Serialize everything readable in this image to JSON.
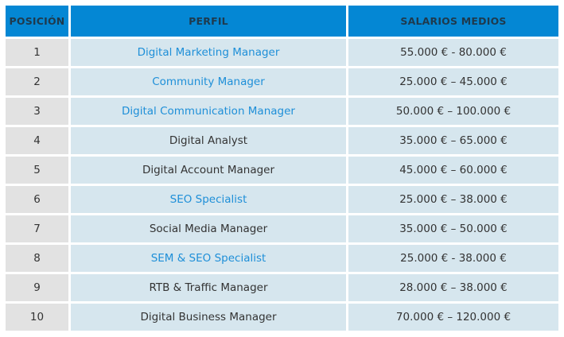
{
  "headers": {
    "position": "POSICIÓN",
    "profile": "PERFIL",
    "salary": "SALARIOS MEDIOS"
  },
  "rows": [
    {
      "pos": "1",
      "profile": "Digital Marketing Manager",
      "link": true,
      "salary": "55.000 € - 80.000 €"
    },
    {
      "pos": "2",
      "profile": "Community Manager",
      "link": true,
      "salary": "25.000 € – 45.000 €"
    },
    {
      "pos": "3",
      "profile": "Digital Communication Manager",
      "link": true,
      "salary": "50.000 € – 100.000 €"
    },
    {
      "pos": "4",
      "profile": "Digital Analyst",
      "link": false,
      "salary": "35.000 € – 65.000 €"
    },
    {
      "pos": "5",
      "profile": "Digital Account Manager",
      "link": false,
      "salary": "45.000 € – 60.000 €"
    },
    {
      "pos": "6",
      "profile": "SEO Specialist",
      "link": true,
      "salary": "25.000 € – 38.000 €"
    },
    {
      "pos": "7",
      "profile": "Social Media Manager",
      "link": false,
      "salary": "35.000 € – 50.000 €"
    },
    {
      "pos": "8",
      "profile": "SEM & SEO Specialist",
      "link": true,
      "salary": "25.000 € - 38.000 €"
    },
    {
      "pos": "9",
      "profile": "RTB & Traffic Manager",
      "link": false,
      "salary": "28.000 € – 38.000 €"
    },
    {
      "pos": "10",
      "profile": "Digital Business Manager",
      "link": false,
      "salary": "70.000 € – 120.000 €"
    }
  ],
  "colors": {
    "header_bg": "#0487d4",
    "header_text": "#1f3a4d",
    "position_cell_bg": "#e2e2e2",
    "data_cell_bg": "#d6e6ee",
    "link": "#1e8fd8",
    "text": "#333333"
  }
}
